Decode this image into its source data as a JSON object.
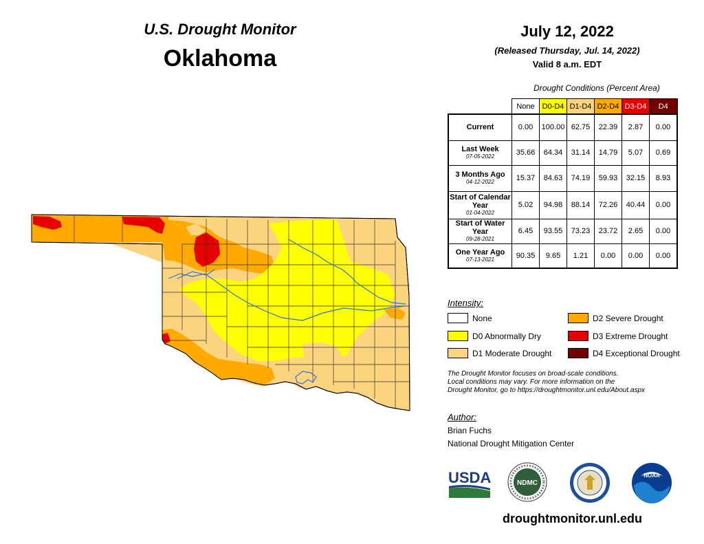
{
  "header": {
    "title": "U.S. Drought Monitor",
    "state": "Oklahoma",
    "date": "July 12, 2022",
    "released": "(Released Thursday, Jul. 14, 2022)",
    "valid": "Valid 8 a.m. EDT"
  },
  "table": {
    "caption": "Drought Conditions (Percent Area)",
    "columns": [
      {
        "label": "None",
        "color": "#ffffff",
        "text_color": "#000000"
      },
      {
        "label": "D0-D4",
        "color": "#ffff00",
        "text_color": "#000000"
      },
      {
        "label": "D1-D4",
        "color": "#fcd37f",
        "text_color": "#000000"
      },
      {
        "label": "D2-D4",
        "color": "#ffaa00",
        "text_color": "#000000"
      },
      {
        "label": "D3-D4",
        "color": "#e60000",
        "text_color": "#ffffff"
      },
      {
        "label": "D4",
        "color": "#730000",
        "text_color": "#ffffff"
      }
    ],
    "rows": [
      {
        "label": "Current",
        "date": "",
        "values": [
          "0.00",
          "100.00",
          "62.75",
          "22.39",
          "2.87",
          "0.00"
        ]
      },
      {
        "label": "Last Week",
        "date": "07-05-2022",
        "values": [
          "35.66",
          "64.34",
          "31.14",
          "14.79",
          "5.07",
          "0.69"
        ]
      },
      {
        "label": "3 Months Ago",
        "date": "04-12-2022",
        "values": [
          "15.37",
          "84.63",
          "74.19",
          "59.93",
          "32.15",
          "8.93"
        ]
      },
      {
        "label": "Start of Calendar Year",
        "date": "01-04-2022",
        "values": [
          "5.02",
          "94.98",
          "88.14",
          "72.26",
          "40.44",
          "0.00"
        ]
      },
      {
        "label": "Start of Water Year",
        "date": "09-28-2021",
        "values": [
          "6.45",
          "93.55",
          "73.23",
          "23.72",
          "2.65",
          "0.00"
        ]
      },
      {
        "label": "One Year Ago",
        "date": "07-13-2021",
        "values": [
          "90.35",
          "9.65",
          "1.21",
          "0.00",
          "0.00",
          "0.00"
        ]
      }
    ]
  },
  "legend": {
    "title": "Intensity:",
    "items": [
      {
        "label": "None",
        "color": "#ffffff"
      },
      {
        "label": "D0 Abnormally Dry",
        "color": "#ffff00"
      },
      {
        "label": "D1 Moderate Drought",
        "color": "#fcd37f"
      },
      {
        "label": "D2 Severe Drought",
        "color": "#ffaa00"
      },
      {
        "label": "D3 Extreme Drought",
        "color": "#e60000"
      },
      {
        "label": "D4 Exceptional Drought",
        "color": "#730000"
      }
    ]
  },
  "disclaimer": [
    "The Drought Monitor focuses on broad-scale conditions.",
    "Local conditions may vary. For more information on the",
    "Drought Monitor, go to https://droughtmonitor.unl.edu/About.aspx"
  ],
  "author": {
    "title": "Author:",
    "name": "Brian Fuchs",
    "org": "National Drought Mitigation Center"
  },
  "logos": {
    "usda": "USDA",
    "ndmc": "NDMC",
    "noaa": "NOAA",
    "doc": "department-of-commerce-seal"
  },
  "website": "droughtmonitor.unl.edu",
  "colors": {
    "d0": "#ffff00",
    "d1": "#fcd37f",
    "d2": "#ffaa00",
    "d3": "#e60000",
    "d4": "#730000",
    "water": "#2e78c8"
  }
}
